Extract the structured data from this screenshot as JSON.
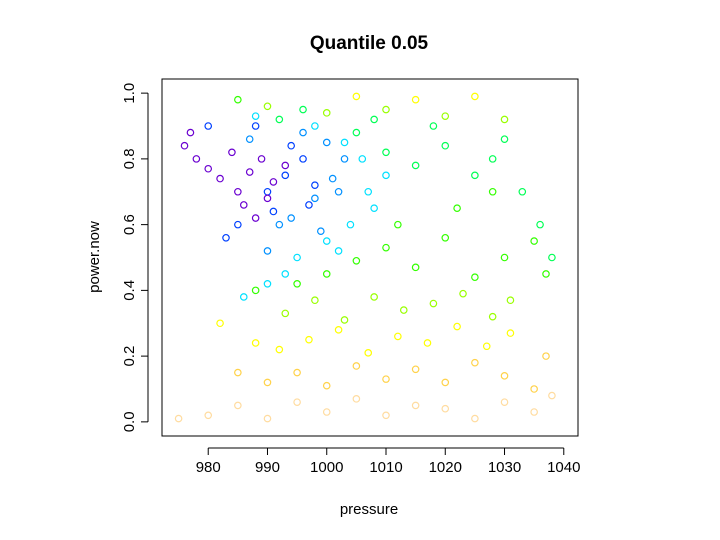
{
  "chart_data": {
    "type": "scatter",
    "title": "Quantile 0.05",
    "x_label": "pressure",
    "y_label": "power.now",
    "xlim": [
      972.2,
      1042.4
    ],
    "ylim": [
      -0.043,
      1.043
    ],
    "xticks": [
      980,
      990,
      1000,
      1010,
      1020,
      1030,
      1040
    ],
    "yticks": [
      {
        "value": 0,
        "label": "0.0"
      },
      0.2,
      0.4,
      0.6,
      0.8,
      {
        "value": 1,
        "label": "1.0"
      }
    ],
    "series": [
      {
        "color": "#ffdca0",
        "x": [
          980,
          985,
          990,
          995,
          1000,
          1005,
          1010,
          1015,
          1020,
          1025,
          1030,
          1035,
          1038,
          975
        ],
        "values": [
          0.02,
          0.05,
          0.01,
          0.06,
          0.03,
          0.07,
          0.02,
          0.05,
          0.04,
          0.01,
          0.06,
          0.03,
          0.08,
          0.01
        ]
      },
      {
        "color": "#ffd24a",
        "x": [
          990,
          995,
          1000,
          1005,
          1010,
          1015,
          1020,
          1025,
          1030,
          1035,
          1037,
          985
        ],
        "values": [
          0.12,
          0.15,
          0.11,
          0.17,
          0.13,
          0.16,
          0.12,
          0.18,
          0.14,
          0.1,
          0.2,
          0.15
        ]
      },
      {
        "color": "#ffff00",
        "x": [
          992,
          997,
          1002,
          1007,
          1012,
          1017,
          1022,
          1027,
          1031,
          988,
          1005,
          1015,
          1025,
          982
        ],
        "values": [
          0.22,
          0.25,
          0.28,
          0.21,
          0.26,
          0.24,
          0.29,
          0.23,
          0.27,
          0.24,
          0.99,
          0.98,
          0.99,
          0.3
        ]
      },
      {
        "color": "#99ff00",
        "x": [
          993,
          998,
          1003,
          1008,
          1013,
          1018,
          1023,
          1028,
          1031,
          990,
          1000,
          1010,
          1020,
          1030
        ],
        "values": [
          0.33,
          0.37,
          0.31,
          0.38,
          0.34,
          0.36,
          0.39,
          0.32,
          0.37,
          0.96,
          0.94,
          0.95,
          0.93,
          0.92
        ]
      },
      {
        "color": "#33ff00",
        "x": [
          995,
          1000,
          1005,
          1010,
          1015,
          1020,
          1025,
          1030,
          1012,
          1022,
          1028,
          1035,
          1037,
          985,
          988
        ],
        "values": [
          0.42,
          0.45,
          0.49,
          0.53,
          0.47,
          0.56,
          0.44,
          0.5,
          0.6,
          0.65,
          0.7,
          0.55,
          0.45,
          0.98,
          0.4
        ]
      },
      {
        "color": "#00ff55",
        "x": [
          1005,
          1010,
          1015,
          1020,
          1025,
          1030,
          1008,
          1018,
          1028,
          1033,
          1036,
          1038,
          992,
          996
        ],
        "values": [
          0.88,
          0.82,
          0.78,
          0.84,
          0.75,
          0.86,
          0.92,
          0.9,
          0.8,
          0.7,
          0.6,
          0.5,
          0.92,
          0.95
        ]
      },
      {
        "color": "#00e0ff",
        "x": [
          995,
          1000,
          1004,
          1008,
          1010,
          1003,
          998,
          1006,
          993,
          986,
          988,
          990,
          1002,
          1007
        ],
        "values": [
          0.5,
          0.55,
          0.6,
          0.65,
          0.75,
          0.85,
          0.9,
          0.8,
          0.45,
          0.38,
          0.93,
          0.42,
          0.52,
          0.7
        ]
      },
      {
        "color": "#0090ff",
        "x": [
          994,
          998,
          1001,
          1003,
          1000,
          996,
          992,
          999,
          1002,
          990,
          987
        ],
        "values": [
          0.62,
          0.68,
          0.74,
          0.8,
          0.85,
          0.88,
          0.6,
          0.58,
          0.7,
          0.52,
          0.86
        ]
      },
      {
        "color": "#0040ff",
        "x": [
          990,
          993,
          996,
          998,
          994,
          991,
          985,
          988,
          980,
          983,
          997
        ],
        "values": [
          0.7,
          0.75,
          0.8,
          0.72,
          0.84,
          0.64,
          0.6,
          0.9,
          0.9,
          0.56,
          0.66
        ]
      },
      {
        "color": "#6a00d0",
        "x": [
          985,
          987,
          989,
          991,
          993,
          986,
          984,
          982,
          978,
          976,
          990,
          988,
          980,
          977
        ],
        "values": [
          0.7,
          0.76,
          0.8,
          0.73,
          0.78,
          0.66,
          0.82,
          0.74,
          0.8,
          0.84,
          0.68,
          0.62,
          0.77,
          0.88
        ]
      }
    ]
  }
}
